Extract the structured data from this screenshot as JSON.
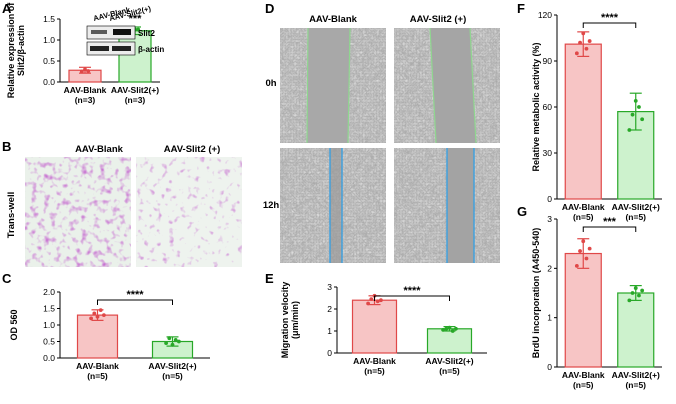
{
  "colors": {
    "blank_fill": "#f7c5c5",
    "blank_stroke": "#e04848",
    "slit_fill": "#cdf2cd",
    "slit_stroke": "#28a828"
  },
  "panels": {
    "A": "A",
    "B": "B",
    "C": "C",
    "D": "D",
    "E": "E",
    "F": "F",
    "G": "G"
  },
  "microscopy": {
    "B": {
      "headers": [
        "AAV-Blank",
        "AAV-Slit2 (+)"
      ],
      "row_label": "Trans-well"
    },
    "D": {
      "headers": [
        "AAV-Blank",
        "AAV-Slit2 (+)"
      ],
      "row_labels": [
        "0h",
        "12h"
      ]
    }
  },
  "western_blot": {
    "lanes": [
      "AAV-Blank",
      "AAV-Slit2(+)"
    ],
    "bands": [
      "Slit2",
      "β-actin"
    ]
  },
  "chart_data": [
    {
      "id": "A",
      "type": "bar",
      "categories": [
        "AAV-Blank\n(n=3)",
        "AAV-Slit2(+)\n(n=3)"
      ],
      "values": [
        0.28,
        1.22
      ],
      "errors": [
        0.07,
        0.09
      ],
      "points": [
        [
          0.25,
          0.3,
          0.26
        ],
        [
          1.15,
          1.25,
          1.25
        ]
      ],
      "ylabel": "Relative expression of\nSlit2/β-actin",
      "ylim": [
        0,
        1.5
      ],
      "yticks": [
        "0.0",
        "0.5",
        "1.0",
        "1.5"
      ],
      "significance": "***"
    },
    {
      "id": "C",
      "type": "bar",
      "categories": [
        "AAV-Blank\n(n=5)",
        "AAV-Slit2(+)\n(n=5)"
      ],
      "values": [
        1.3,
        0.5
      ],
      "errors": [
        0.16,
        0.14
      ],
      "points": [
        [
          1.2,
          1.35,
          1.25,
          1.45,
          1.3
        ],
        [
          0.45,
          0.6,
          0.4,
          0.55,
          0.5
        ]
      ],
      "ylabel": "OD 560",
      "ylim": [
        0,
        2.0
      ],
      "yticks": [
        "0.0",
        "0.5",
        "1.0",
        "1.5",
        "2.0"
      ],
      "significance": "****"
    },
    {
      "id": "E",
      "type": "bar",
      "categories": [
        "AAV-Blank\n(n=5)",
        "AAV-Slit2(+)\n(n=5)"
      ],
      "values": [
        2.4,
        1.1
      ],
      "errors": [
        0.2,
        0.1
      ],
      "points": [
        [
          2.25,
          2.45,
          2.6,
          2.35,
          2.4
        ],
        [
          1.05,
          1.1,
          1.15,
          1.0,
          1.1
        ]
      ],
      "ylabel": "Migration velocity\n(μm/min)",
      "ylim": [
        0,
        3
      ],
      "yticks": [
        "0",
        "1",
        "2",
        "3"
      ],
      "significance": "****"
    },
    {
      "id": "F",
      "type": "bar",
      "categories": [
        "AAV-Blank\n(n=5)",
        "AAV-Slit2(+)\n(n=5)"
      ],
      "values": [
        101,
        57
      ],
      "errors": [
        8,
        12
      ],
      "points": [
        [
          95,
          102,
          108,
          98,
          103
        ],
        [
          45,
          55,
          64,
          60,
          52
        ]
      ],
      "ylabel": "Relative metabolic activity (%)",
      "ylim": [
        0,
        120
      ],
      "yticks": [
        "0",
        "30",
        "60",
        "90",
        "120"
      ],
      "significance": "****"
    },
    {
      "id": "G",
      "type": "bar",
      "categories": [
        "AAV-Blank\n(n=5)",
        "AAV-Slit2(+)\n(n=5)"
      ],
      "values": [
        2.3,
        1.5
      ],
      "errors": [
        0.3,
        0.15
      ],
      "points": [
        [
          2.05,
          2.35,
          2.55,
          2.2,
          2.4
        ],
        [
          1.35,
          1.5,
          1.6,
          1.45,
          1.55
        ]
      ],
      "ylabel": "BrdU incorporation (A450-540)",
      "ylim": [
        0,
        3
      ],
      "yticks": [
        "0",
        "1",
        "2",
        "3"
      ],
      "significance": "***"
    }
  ]
}
